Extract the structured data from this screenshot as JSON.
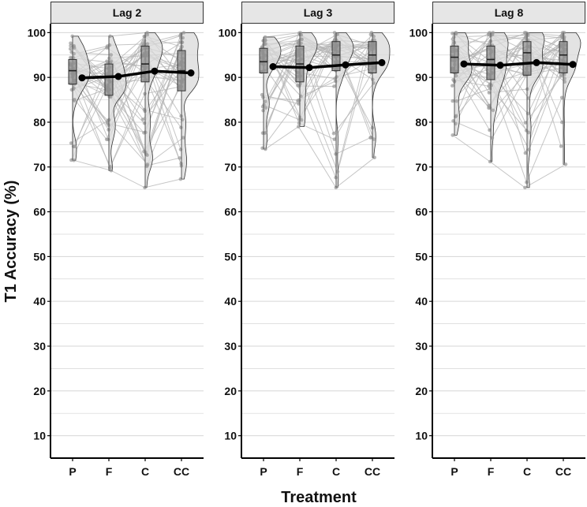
{
  "chart_data": {
    "type": "raincloud",
    "ylabel": "T1 Accuracy (%)",
    "xlabel": "Treatment",
    "categories": [
      "P",
      "F",
      "C",
      "CC"
    ],
    "ylim": [
      5,
      102
    ],
    "yticks": [
      10,
      20,
      30,
      40,
      50,
      60,
      70,
      80,
      90,
      100
    ],
    "grid": true,
    "colors": {
      "strip_fill": "#e6e6e6",
      "violin_fill": "#d9d9d9",
      "box_fill": "#8c8c8c",
      "points": "#9a9a9a",
      "lines": "#b3b3b3",
      "mean_line": "#000000",
      "grid": "#d6d6d6"
    },
    "panels": [
      {
        "title": "Lag 2",
        "means": [
          89.9,
          90.2,
          91.4,
          91.0
        ],
        "box": [
          {
            "q1": 88.5,
            "median": 91.5,
            "q3": 94.0
          },
          {
            "q1": 86.0,
            "median": 90.0,
            "q3": 93.0
          },
          {
            "q1": 89.0,
            "median": 93.0,
            "q3": 97.0
          },
          {
            "q1": 87.0,
            "median": 91.5,
            "q3": 96.0
          }
        ],
        "min": [
          71.5,
          69.2,
          65.4,
          67.3
        ],
        "max": [
          99.2,
          99.2,
          100,
          100
        ]
      },
      {
        "title": "Lag 3",
        "means": [
          92.4,
          92.2,
          92.8,
          93.3
        ],
        "box": [
          {
            "q1": 91.0,
            "median": 93.5,
            "q3": 96.5
          },
          {
            "q1": 89.0,
            "median": 93.0,
            "q3": 97.0
          },
          {
            "q1": 91.5,
            "median": 95.0,
            "q3": 98.0
          },
          {
            "q1": 91.0,
            "median": 95.0,
            "q3": 98.0
          }
        ],
        "min": [
          74.0,
          79.0,
          65.4,
          72.1
        ],
        "max": [
          99.0,
          100,
          100,
          100
        ]
      },
      {
        "title": "Lag 8",
        "means": [
          93.0,
          92.7,
          93.3,
          92.9
        ],
        "box": [
          {
            "q1": 91.0,
            "median": 94.5,
            "q3": 97.0
          },
          {
            "q1": 89.5,
            "median": 94.0,
            "q3": 97.0
          },
          {
            "q1": 90.5,
            "median": 95.5,
            "q3": 98.0
          },
          {
            "q1": 91.0,
            "median": 95.0,
            "q3": 98.0
          }
        ],
        "min": [
          77.1,
          71.2,
          65.4,
          70.6
        ],
        "max": [
          100,
          100,
          100,
          100
        ]
      }
    ]
  }
}
